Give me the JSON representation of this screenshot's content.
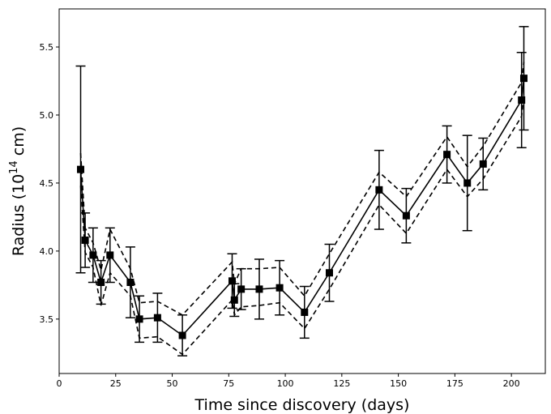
{
  "chart_data": {
    "type": "line",
    "title": "",
    "xlabel": "Time since discovery (days)",
    "ylabel_prefix": "Radius (10",
    "ylabel_sup": "14",
    "ylabel_suffix": " cm)",
    "xlim": [
      0,
      215
    ],
    "ylim": [
      3.1,
      5.78
    ],
    "xticks": [
      0,
      25,
      50,
      75,
      100,
      125,
      150,
      175,
      200
    ],
    "yticks": [
      3.5,
      4.0,
      4.5,
      5.0,
      5.5
    ],
    "ytick_labels": [
      "3.5",
      "4.0",
      "4.5",
      "5.0",
      "5.5"
    ],
    "grid": false,
    "legend": "none",
    "series": [
      {
        "style": "solid-with-square-markers-and-errorbars",
        "color": "#000000",
        "points": [
          {
            "x": 9.5,
            "y": 4.6,
            "err": 0.76
          },
          {
            "x": 11.5,
            "y": 4.08,
            "err": 0.2
          },
          {
            "x": 15,
            "y": 3.97,
            "err": 0.2
          },
          {
            "x": 18.5,
            "y": 3.77,
            "err": 0.16
          },
          {
            "x": 22.5,
            "y": 3.97,
            "err": 0.2
          },
          {
            "x": 31.5,
            "y": 3.77,
            "err": 0.26
          },
          {
            "x": 35.5,
            "y": 3.5,
            "err": 0.17
          },
          {
            "x": 43.5,
            "y": 3.51,
            "err": 0.18
          },
          {
            "x": 54.5,
            "y": 3.38,
            "err": 0.15
          },
          {
            "x": 76.5,
            "y": 3.78,
            "err": 0.2
          },
          {
            "x": 77.5,
            "y": 3.64,
            "err": 0.12
          },
          {
            "x": 80.5,
            "y": 3.72,
            "err": 0.15
          },
          {
            "x": 88.5,
            "y": 3.72,
            "err": 0.22
          },
          {
            "x": 97.5,
            "y": 3.73,
            "err": 0.2
          },
          {
            "x": 108.5,
            "y": 3.55,
            "err": 0.19
          },
          {
            "x": 119.5,
            "y": 3.84,
            "err": 0.21
          },
          {
            "x": 141.5,
            "y": 4.45,
            "err": 0.29
          },
          {
            "x": 153.5,
            "y": 4.26,
            "err": 0.2
          },
          {
            "x": 171.5,
            "y": 4.71,
            "err": 0.21
          },
          {
            "x": 180.5,
            "y": 4.5,
            "err": 0.35
          },
          {
            "x": 187.5,
            "y": 4.64,
            "err": 0.19
          },
          {
            "x": 204.5,
            "y": 5.11,
            "err": 0.35
          },
          {
            "x": 205.5,
            "y": 5.27,
            "err": 0.38
          }
        ]
      },
      {
        "style": "dashed",
        "color": "#000000",
        "points": [
          {
            "x": 9.5,
            "y": 4.72
          },
          {
            "x": 11.5,
            "y": 4.17
          },
          {
            "x": 15,
            "y": 4.06
          },
          {
            "x": 18.5,
            "y": 3.86
          },
          {
            "x": 22.5,
            "y": 4.16
          },
          {
            "x": 31.5,
            "y": 3.87
          },
          {
            "x": 35.5,
            "y": 3.62
          },
          {
            "x": 43.5,
            "y": 3.63
          },
          {
            "x": 54.5,
            "y": 3.53
          },
          {
            "x": 76.5,
            "y": 3.92
          },
          {
            "x": 77.5,
            "y": 3.76
          },
          {
            "x": 80.5,
            "y": 3.87
          },
          {
            "x": 88.5,
            "y": 3.87
          },
          {
            "x": 97.5,
            "y": 3.88
          },
          {
            "x": 108.5,
            "y": 3.67
          },
          {
            "x": 119.5,
            "y": 3.98
          },
          {
            "x": 141.5,
            "y": 4.58
          },
          {
            "x": 153.5,
            "y": 4.4
          },
          {
            "x": 171.5,
            "y": 4.84
          },
          {
            "x": 180.5,
            "y": 4.62
          },
          {
            "x": 187.5,
            "y": 4.77
          },
          {
            "x": 204.5,
            "y": 5.24
          },
          {
            "x": 205.5,
            "y": 5.39
          }
        ]
      },
      {
        "style": "dashed",
        "color": "#000000",
        "points": [
          {
            "x": 9.5,
            "y": 4.48
          },
          {
            "x": 11.5,
            "y": 3.99
          },
          {
            "x": 15,
            "y": 3.88
          },
          {
            "x": 18.5,
            "y": 3.6
          },
          {
            "x": 22.5,
            "y": 3.84
          },
          {
            "x": 31.5,
            "y": 3.67
          },
          {
            "x": 35.5,
            "y": 3.36
          },
          {
            "x": 43.5,
            "y": 3.37
          },
          {
            "x": 54.5,
            "y": 3.24
          },
          {
            "x": 76.5,
            "y": 3.64
          },
          {
            "x": 77.5,
            "y": 3.53
          },
          {
            "x": 80.5,
            "y": 3.59
          },
          {
            "x": 88.5,
            "y": 3.6
          },
          {
            "x": 97.5,
            "y": 3.62
          },
          {
            "x": 108.5,
            "y": 3.43
          },
          {
            "x": 119.5,
            "y": 3.72
          },
          {
            "x": 141.5,
            "y": 4.34
          },
          {
            "x": 153.5,
            "y": 4.13
          },
          {
            "x": 171.5,
            "y": 4.6
          },
          {
            "x": 180.5,
            "y": 4.4
          },
          {
            "x": 187.5,
            "y": 4.53
          },
          {
            "x": 204.5,
            "y": 4.99
          },
          {
            "x": 205.5,
            "y": 5.15
          }
        ]
      }
    ]
  }
}
